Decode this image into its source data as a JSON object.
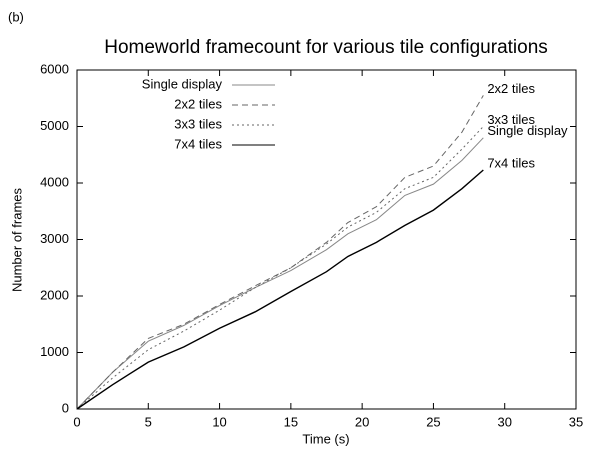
{
  "chart_data": {
    "type": "line",
    "panel_label": "(b)",
    "title": "Homeworld framecount for various tile configurations",
    "x_label": "Time (s)",
    "y_label": "Number of frames",
    "x": [
      0,
      2.5,
      5,
      7.5,
      10,
      12.5,
      15,
      17.5,
      19,
      21,
      23,
      25,
      27,
      28.5
    ],
    "series": [
      {
        "name": "Single display",
        "color": "#888888",
        "dash": "none",
        "values": [
          0,
          650,
          1200,
          1480,
          1830,
          2150,
          2450,
          2820,
          3100,
          3350,
          3780,
          3980,
          4400,
          4800
        ]
      },
      {
        "name": "2x2 tiles",
        "color": "#666666",
        "dash": "6,4",
        "values": [
          0,
          650,
          1250,
          1500,
          1850,
          2180,
          2500,
          2950,
          3300,
          3580,
          4100,
          4300,
          4900,
          5550
        ]
      },
      {
        "name": "3x3 tiles",
        "color": "#666666",
        "dash": "2,3",
        "values": [
          0,
          550,
          1050,
          1380,
          1750,
          2150,
          2500,
          2920,
          3220,
          3480,
          3900,
          4100,
          4600,
          5000
        ]
      },
      {
        "name": "7x4 tiles",
        "color": "#000000",
        "dash": "none",
        "values": [
          0,
          430,
          830,
          1100,
          1430,
          1720,
          2080,
          2430,
          2700,
          2950,
          3250,
          3520,
          3900,
          4230
        ]
      }
    ],
    "xlim": [
      0,
      35
    ],
    "xticks": [
      0,
      5,
      10,
      15,
      20,
      25,
      30,
      35
    ],
    "ylim": [
      0,
      6000
    ],
    "yticks": [
      0,
      1000,
      2000,
      3000,
      4000,
      5000,
      6000
    ],
    "grid": false,
    "legend": "upper-left",
    "end_labels": true
  }
}
